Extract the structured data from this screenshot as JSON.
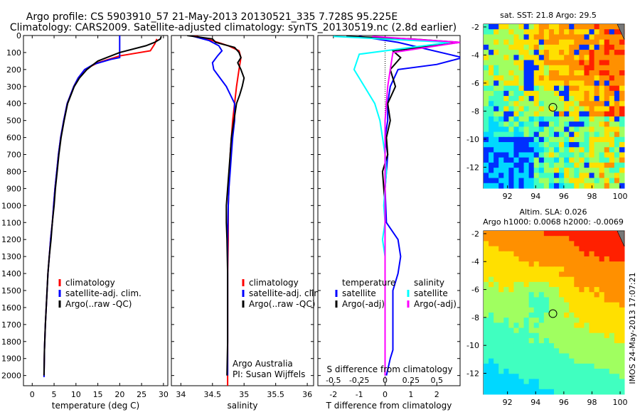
{
  "header": {
    "line1": "Argo profile: CS 5903910_57 21-May-2013 20130521_335 7.728S 95.225E",
    "line2": "Climatology: CARS2009. Satellite-adjusted climatology: synTS_20130519.nc (2.8d earlier)"
  },
  "watermark": "IMOS 24-May-2013 17:07:21",
  "colors": {
    "climatology": "#ff0000",
    "satellite": "#0000ff",
    "argo": "#000000",
    "cyan": "#00ffff",
    "magenta": "#ff00ff"
  },
  "chart_data": [
    {
      "type": "line",
      "xlabel": "temperature (deg C)",
      "ylabel": "",
      "xlim": [
        -2,
        31
      ],
      "ylim": [
        2060,
        0
      ],
      "xticks": [
        0,
        5,
        10,
        15,
        20,
        25,
        30
      ],
      "yticks": [
        0,
        100,
        200,
        300,
        400,
        500,
        600,
        700,
        800,
        900,
        1000,
        1100,
        1200,
        1300,
        1400,
        1500,
        1600,
        1700,
        1800,
        1900,
        2000
      ],
      "legend": [
        "climatology",
        "satellite-adj. clim.",
        "Argo(..raw -QC)"
      ],
      "series": [
        {
          "name": "climatology",
          "color": "#ff0000",
          "x": [
            28.5,
            28,
            27,
            20,
            15,
            12,
            10.5,
            9.5,
            8,
            7.2,
            6.5,
            6,
            5.6,
            5.2,
            4.9,
            4.6,
            4.2,
            3.9,
            3.6,
            3.4,
            3.2,
            3.0,
            2.8,
            2.7
          ],
          "y": [
            20,
            50,
            90,
            120,
            160,
            200,
            250,
            300,
            400,
            500,
            600,
            700,
            800,
            900,
            1000,
            1100,
            1200,
            1300,
            1400,
            1500,
            1600,
            1700,
            1850,
            2000
          ]
        },
        {
          "name": "satellite-adj. clim.",
          "color": "#0000ff",
          "x": [
            20,
            20,
            20,
            18,
            14,
            12,
            10.5,
            9.5,
            8,
            7.2,
            6.5,
            6,
            5.6,
            5.2,
            4.9,
            4.6,
            4.2,
            3.9,
            3.6,
            3.4,
            3.2,
            3.0,
            2.8,
            2.7
          ],
          "y": [
            0,
            40,
            130,
            140,
            170,
            200,
            250,
            300,
            400,
            500,
            600,
            700,
            800,
            900,
            1000,
            1100,
            1200,
            1300,
            1400,
            1500,
            1600,
            1700,
            1850,
            2010
          ]
        },
        {
          "name": "Argo(..raw -QC)",
          "color": "#000000",
          "x": [
            29.5,
            29.3,
            28,
            26,
            20,
            15,
            12.5,
            10.8,
            9.6,
            8.1,
            7.3,
            6.6,
            6.1,
            5.7,
            5.3,
            5.0,
            4.6,
            4.3,
            3.9,
            3.6,
            3.4,
            3.2,
            3.0,
            2.8,
            2.7
          ],
          "y": [
            5,
            20,
            40,
            60,
            100,
            150,
            200,
            250,
            300,
            400,
            500,
            600,
            700,
            800,
            900,
            1000,
            1100,
            1200,
            1300,
            1400,
            1500,
            1600,
            1700,
            1850,
            2000
          ]
        }
      ]
    },
    {
      "type": "line",
      "xlabel": "salinity",
      "ylabel": "",
      "xlim": [
        33.85,
        36.1
      ],
      "ylim": [
        2060,
        0
      ],
      "xticks": [
        34,
        34.5,
        35,
        35.5,
        36
      ],
      "legend": [
        "climatology",
        "satellite-adj. clim.",
        "Argo(..raw -QC)"
      ],
      "annotations": [
        "Argo Australia",
        "PI: Susan Wijffels"
      ],
      "series": [
        {
          "name": "climatology",
          "color": "#ff0000",
          "x": [
            34.2,
            34.5,
            34.75,
            34.92,
            34.95,
            34.92,
            34.88,
            34.85,
            34.82,
            34.8,
            34.78,
            34.77,
            34.76,
            34.75,
            34.75,
            34.74,
            34.74,
            34.74,
            34.74,
            34.74,
            34.74,
            34.74
          ],
          "y": [
            0,
            30,
            60,
            90,
            130,
            200,
            300,
            400,
            500,
            600,
            700,
            800,
            900,
            1000,
            1200,
            1400,
            1500,
            1600,
            1700,
            1800,
            1900,
            2060
          ]
        },
        {
          "name": "satellite-adj. clim.",
          "color": "#0000ff",
          "x": [
            34.15,
            34.45,
            34.6,
            34.65,
            34.58,
            34.5,
            34.52,
            34.72,
            34.85,
            34.85,
            34.82,
            34.8,
            34.78,
            34.76,
            34.75,
            34.74,
            34.74,
            34.74,
            34.74,
            34.74
          ],
          "y": [
            0,
            30,
            60,
            90,
            120,
            160,
            200,
            300,
            400,
            500,
            600,
            700,
            800,
            900,
            1000,
            1200,
            1400,
            1600,
            1800,
            2000
          ]
        },
        {
          "name": "Argo(..raw -QC)",
          "color": "#000000",
          "x": [
            34.1,
            34.3,
            34.5,
            34.55,
            34.7,
            34.85,
            34.92,
            34.95,
            34.9,
            34.95,
            35.0,
            34.97,
            34.93,
            34.88,
            34.84,
            34.8,
            34.78,
            34.76,
            34.74,
            34.72,
            34.72,
            34.73,
            34.74,
            34.74,
            34.74,
            34.73
          ],
          "y": [
            0,
            10,
            20,
            40,
            55,
            70,
            100,
            130,
            160,
            200,
            250,
            300,
            350,
            400,
            500,
            600,
            700,
            800,
            900,
            1000,
            1100,
            1200,
            1400,
            1600,
            1800,
            2000
          ]
        }
      ]
    },
    {
      "type": "line",
      "xlabel": "T difference from climatology",
      "x2label": "S difference from climatology",
      "xlim": [
        -2.6,
        2.9
      ],
      "ylim": [
        2060,
        0
      ],
      "xticks": [
        -2,
        -1,
        0,
        1,
        2
      ],
      "x2ticks": [
        "-0.5",
        "-0.25",
        "0",
        "0.25",
        "0.5"
      ],
      "legend_t": [
        "temperature",
        "satellite",
        "Argo(-adj)"
      ],
      "legend_s": [
        "salinity",
        "satellite",
        "Argo(-adj)"
      ],
      "series": [
        {
          "name": "temperature satellite",
          "color": "#0000ff",
          "x": [
            -1.0,
            0.5,
            3.0,
            2.0,
            0.5,
            0.2,
            0.1,
            0.1,
            0.0,
            0.1,
            0.05,
            0.0,
            0.05,
            0.5,
            0.6,
            0.5,
            0.3,
            0.3,
            0.3,
            0.3,
            0.3,
            0.3,
            0.2,
            0.05
          ],
          "y": [
            5,
            40,
            130,
            170,
            200,
            300,
            400,
            500,
            600,
            700,
            800,
            900,
            1100,
            1200,
            1300,
            1400,
            1500,
            1600,
            1700,
            1750,
            1800,
            1850,
            1900,
            2000
          ]
        },
        {
          "name": "temperature Argo(-adj)",
          "color": "#000000",
          "x": [
            -1.5,
            1.0,
            2.9,
            0.3,
            0.6,
            0.2,
            0.4,
            0.1,
            0.2,
            0.05,
            0.1,
            -0.1,
            -0.05,
            0.0,
            0.0,
            0.0,
            0.0,
            0.0,
            0.0,
            0.0
          ],
          "y": [
            5,
            20,
            40,
            90,
            130,
            200,
            300,
            400,
            500,
            600,
            700,
            800,
            900,
            1000,
            1200,
            1400,
            1600,
            1800,
            1900,
            2000
          ]
        },
        {
          "name": "salinity satellite",
          "color": "#00ffff",
          "x": [
            -2.0,
            2.5,
            -1.0,
            -1.2,
            -0.8,
            -0.4,
            -0.2,
            -0.1,
            0.0,
            0.05,
            0.0,
            -0.05,
            0.0,
            -0.1,
            0.0,
            0.0,
            0.0,
            0.0,
            0.0
          ],
          "y": [
            5,
            40,
            110,
            200,
            300,
            400,
            500,
            600,
            700,
            800,
            900,
            1000,
            1100,
            1200,
            1300,
            1400,
            1600,
            1800,
            2000
          ]
        },
        {
          "name": "salinity Argo(-adj)",
          "color": "#ff00ff",
          "x": [
            -0.5,
            2.9,
            0.3,
            0.2,
            0.1,
            0.05,
            0.0,
            0.0,
            0.0,
            0.0,
            0.0,
            0.0,
            0.0,
            0.0,
            0.0,
            0.0
          ],
          "y": [
            5,
            40,
            100,
            200,
            300,
            400,
            500,
            600,
            700,
            800,
            1000,
            1200,
            1400,
            1600,
            1800,
            2000
          ]
        }
      ]
    },
    {
      "type": "heatmap",
      "title": "sat. SST: 21.8  Argo: 29.5",
      "xlim": [
        90.3,
        100.3
      ],
      "ylim": [
        -13.5,
        -1.8
      ],
      "xticks": [
        92,
        94,
        96,
        98,
        100
      ],
      "yticks": [
        -2,
        -4,
        -6,
        -8,
        -10,
        -12
      ],
      "marker": {
        "lon": 95.225,
        "lat": -7.728
      }
    },
    {
      "type": "heatmap",
      "title": "Altim. SLA: 0.026",
      "subtitle": "Argo h1000: 0.0068  h2000: -0.0069",
      "xlim": [
        90.3,
        100.3
      ],
      "ylim": [
        -13.5,
        -1.8
      ],
      "xticks": [
        92,
        94,
        96,
        98,
        100
      ],
      "yticks": [
        -2,
        -4,
        -6,
        -8,
        -10,
        -12
      ],
      "marker": {
        "lon": 95.225,
        "lat": -7.728
      }
    }
  ]
}
